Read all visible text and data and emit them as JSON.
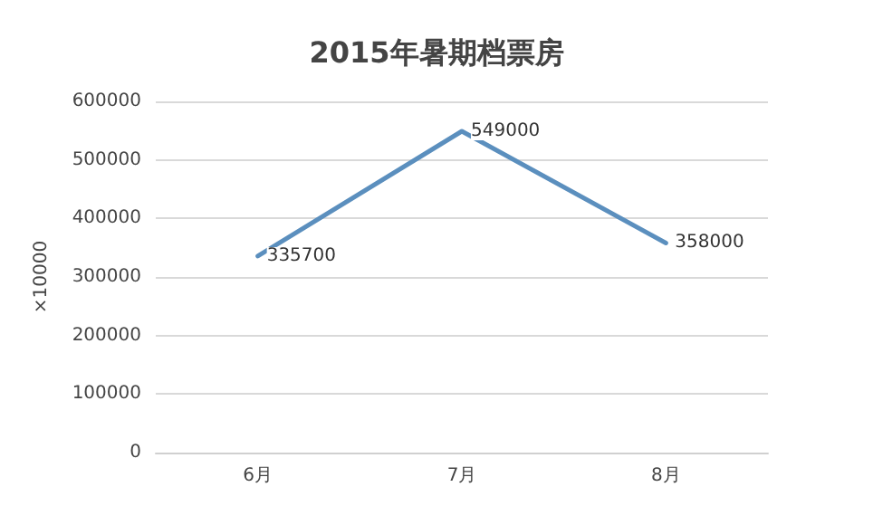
{
  "chart_data": {
    "type": "line",
    "title": "2015年暑期档票房",
    "ylabel": "×10000",
    "categories": [
      "6月",
      "7月",
      "8月"
    ],
    "series": [
      {
        "color": "#5b8fbe",
        "values": [
          335700,
          549000,
          358000
        ]
      }
    ],
    "ylim": [
      0,
      600000
    ],
    "yticks": [
      0,
      100000,
      200000,
      300000,
      400000,
      500000,
      600000
    ],
    "grid": "y",
    "data_labels": true,
    "marker": "none",
    "line_style": "solid"
  }
}
